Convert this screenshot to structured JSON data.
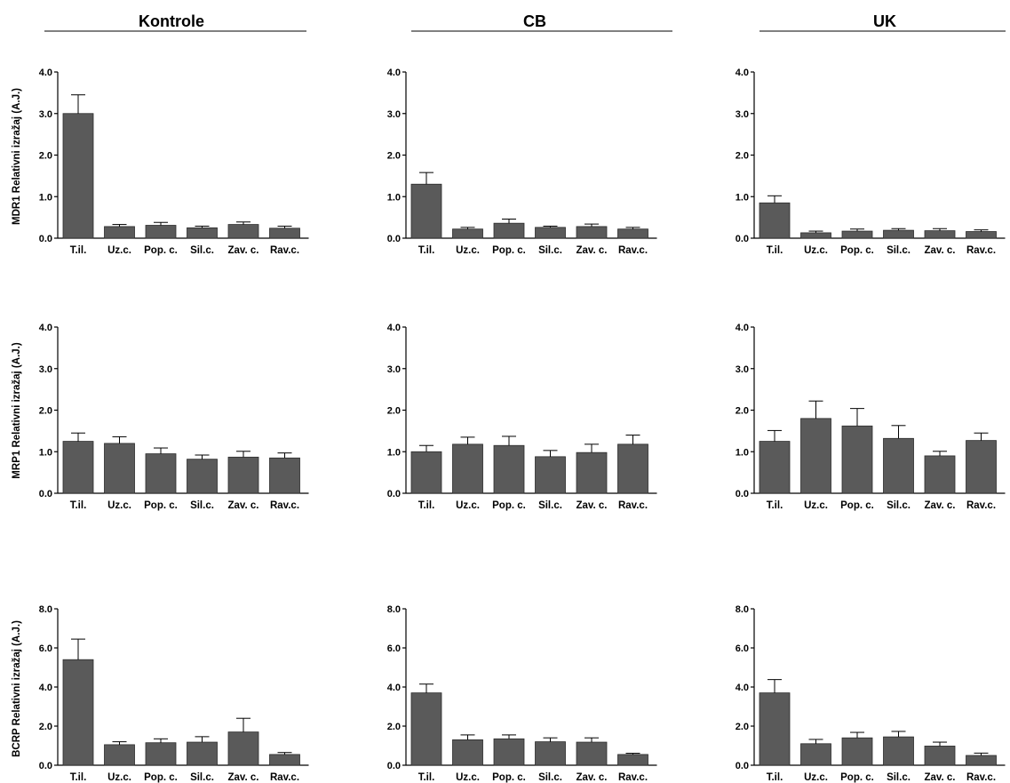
{
  "colors": {
    "bar": "#5a5a5a",
    "bar_stroke": "#2b2b2b",
    "axis": "#000000"
  },
  "columns": [
    "Kontrole",
    "CB",
    "UK"
  ],
  "row_ylabels": [
    "MDR1 Relativni izražaj (A.J.)",
    "MRP1 Relativni izražaj (A.J.)",
    "BCRP Relativni izražaj (A.J.)"
  ],
  "chart_data": [
    {
      "type": "bar",
      "title": "Kontrole",
      "ylabel": "MDR1 Relativni izražaj (A.J.)",
      "ylim": [
        0,
        4
      ],
      "yticks": [
        "0.0",
        "1.0",
        "2.0",
        "3.0",
        "4.0"
      ],
      "categories": [
        "T.il.",
        "Uz.c.",
        "Pop. c.",
        "Sil.c.",
        "Zav. c.",
        "Rav.c."
      ],
      "values": [
        3.0,
        0.28,
        0.31,
        0.25,
        0.33,
        0.24
      ],
      "errors": [
        0.45,
        0.05,
        0.07,
        0.04,
        0.06,
        0.05
      ]
    },
    {
      "type": "bar",
      "title": "CB",
      "ylabel": "",
      "ylim": [
        0,
        4
      ],
      "yticks": [
        "0.0",
        "1.0",
        "2.0",
        "3.0",
        "4.0"
      ],
      "categories": [
        "T.il.",
        "Uz.c.",
        "Pop. c.",
        "Sil.c.",
        "Zav. c.",
        "Rav.c."
      ],
      "values": [
        1.3,
        0.22,
        0.36,
        0.26,
        0.28,
        0.22
      ],
      "errors": [
        0.28,
        0.04,
        0.1,
        0.03,
        0.06,
        0.04
      ]
    },
    {
      "type": "bar",
      "title": "UK",
      "ylabel": "",
      "ylim": [
        0,
        4
      ],
      "yticks": [
        "0.0",
        "1.0",
        "2.0",
        "3.0",
        "4.0"
      ],
      "categories": [
        "T.il.",
        "Uz.c.",
        "Pop. c.",
        "Sil.c.",
        "Zav. c.",
        "Rav.c."
      ],
      "values": [
        0.85,
        0.13,
        0.17,
        0.19,
        0.18,
        0.16
      ],
      "errors": [
        0.17,
        0.04,
        0.05,
        0.04,
        0.05,
        0.04
      ]
    },
    {
      "type": "bar",
      "title": "Kontrole",
      "ylabel": "MRP1 Relativni izražaj (A.J.)",
      "ylim": [
        0,
        4
      ],
      "yticks": [
        "0.0",
        "1.0",
        "2.0",
        "3.0",
        "4.0"
      ],
      "categories": [
        "T.il.",
        "Uz.c.",
        "Pop. c.",
        "Sil.c.",
        "Zav. c.",
        "Rav.c."
      ],
      "values": [
        1.25,
        1.2,
        0.95,
        0.82,
        0.87,
        0.85
      ],
      "errors": [
        0.2,
        0.16,
        0.14,
        0.1,
        0.14,
        0.12
      ]
    },
    {
      "type": "bar",
      "title": "CB",
      "ylabel": "",
      "ylim": [
        0,
        4
      ],
      "yticks": [
        "0.0",
        "1.0",
        "2.0",
        "3.0",
        "4.0"
      ],
      "categories": [
        "T.il.",
        "Uz.c.",
        "Pop. c.",
        "Sil.c.",
        "Zav. c.",
        "Rav.c."
      ],
      "values": [
        1.0,
        1.18,
        1.15,
        0.88,
        0.98,
        1.18
      ],
      "errors": [
        0.15,
        0.17,
        0.22,
        0.15,
        0.2,
        0.22
      ]
    },
    {
      "type": "bar",
      "title": "UK",
      "ylabel": "",
      "ylim": [
        0,
        4
      ],
      "yticks": [
        "0.0",
        "1.0",
        "2.0",
        "3.0",
        "4.0"
      ],
      "categories": [
        "T.il.",
        "Uz.c.",
        "Pop. c.",
        "Sil.c.",
        "Zav. c.",
        "Rav.c."
      ],
      "values": [
        1.25,
        1.8,
        1.62,
        1.32,
        0.9,
        1.27
      ],
      "errors": [
        0.26,
        0.42,
        0.42,
        0.31,
        0.11,
        0.18
      ]
    },
    {
      "type": "bar",
      "title": "Kontrole",
      "ylabel": "BCRP Relativni izražaj (A.J.)",
      "ylim": [
        0,
        8
      ],
      "yticks": [
        "0.0",
        "2.0",
        "4.0",
        "6.0",
        "8.0"
      ],
      "categories": [
        "T.il.",
        "Uz.c.",
        "Pop. c.",
        "Sil.c.",
        "Zav. c.",
        "Rav.c."
      ],
      "values": [
        5.4,
        1.05,
        1.15,
        1.18,
        1.7,
        0.55
      ],
      "errors": [
        1.05,
        0.15,
        0.2,
        0.28,
        0.7,
        0.1
      ]
    },
    {
      "type": "bar",
      "title": "CB",
      "ylabel": "",
      "ylim": [
        0,
        8
      ],
      "yticks": [
        "0.0",
        "2.0",
        "4.0",
        "6.0",
        "8.0"
      ],
      "categories": [
        "T.il.",
        "Uz.c.",
        "Pop. c.",
        "Sil.c.",
        "Zav. c.",
        "Rav.c."
      ],
      "values": [
        3.7,
        1.3,
        1.35,
        1.2,
        1.18,
        0.55
      ],
      "errors": [
        0.45,
        0.25,
        0.2,
        0.2,
        0.22,
        0.06
      ]
    },
    {
      "type": "bar",
      "title": "UK",
      "ylabel": "",
      "ylim": [
        0,
        8
      ],
      "yticks": [
        "0.0",
        "2.0",
        "4.0",
        "6.0",
        "8.0"
      ],
      "categories": [
        "T.il.",
        "Uz.c.",
        "Pop. c.",
        "Sil.c.",
        "Zav. c.",
        "Rav.c."
      ],
      "values": [
        3.7,
        1.1,
        1.4,
        1.45,
        0.98,
        0.5
      ],
      "errors": [
        0.68,
        0.22,
        0.28,
        0.28,
        0.2,
        0.12
      ]
    }
  ]
}
